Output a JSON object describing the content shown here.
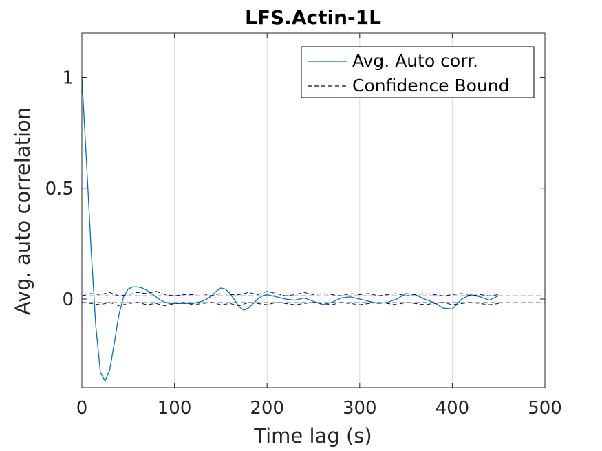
{
  "chart_data": {
    "type": "line",
    "title": "LFS.Actin-1L",
    "xlabel": "Time lag (s)",
    "ylabel": "Avg. auto correlation",
    "xlim": [
      0,
      500
    ],
    "ylim": [
      -0.4,
      1.2
    ],
    "xticks": [
      0,
      100,
      200,
      300,
      400,
      500
    ],
    "xtick_labels": [
      "0",
      "100",
      "200",
      "300",
      "400",
      "500"
    ],
    "yticks": [
      0,
      0.5,
      1
    ],
    "ytick_labels": [
      "0",
      "0.5",
      "1"
    ],
    "grid": "x-major",
    "legend_position": "top-right",
    "colors": {
      "auto_corr": "#0072BD",
      "bound": "#00008B",
      "bound_ref": "#808080",
      "grid": "#DCDCDC",
      "axes": "#262626"
    },
    "series": [
      {
        "name": "Avg. Auto corr.",
        "style": "solid",
        "x": [
          0,
          5,
          10,
          15,
          20,
          25,
          30,
          35,
          40,
          45,
          50,
          55,
          60,
          65,
          70,
          75,
          80,
          85,
          90,
          95,
          100,
          105,
          110,
          115,
          120,
          125,
          130,
          135,
          140,
          145,
          150,
          155,
          160,
          165,
          170,
          175,
          180,
          185,
          190,
          195,
          200,
          210,
          220,
          230,
          240,
          250,
          260,
          270,
          280,
          290,
          300,
          310,
          320,
          330,
          340,
          350,
          360,
          370,
          380,
          390,
          400,
          410,
          420,
          430,
          440,
          450
        ],
        "y": [
          1.0,
          0.62,
          0.22,
          -0.12,
          -0.33,
          -0.37,
          -0.32,
          -0.2,
          -0.07,
          0.01,
          0.045,
          0.055,
          0.055,
          0.05,
          0.04,
          0.025,
          0.01,
          -0.005,
          -0.015,
          -0.02,
          -0.02,
          -0.02,
          -0.02,
          -0.02,
          -0.02,
          -0.015,
          -0.01,
          0.0,
          0.015,
          0.035,
          0.05,
          0.045,
          0.025,
          -0.005,
          -0.035,
          -0.05,
          -0.04,
          -0.02,
          0.0,
          0.015,
          0.02,
          0.01,
          0.0,
          -0.005,
          0.005,
          -0.01,
          -0.025,
          -0.015,
          0.005,
          0.01,
          0.0,
          -0.01,
          -0.02,
          -0.015,
          0.0,
          0.025,
          0.02,
          0.0,
          -0.015,
          -0.04,
          -0.045,
          0.0,
          0.02,
          0.01,
          -0.005,
          0.015
        ]
      },
      {
        "name": "Confidence Bound",
        "style": "dashed",
        "x": [
          0,
          10,
          20,
          30,
          40,
          50,
          60,
          70,
          80,
          90,
          100,
          110,
          120,
          130,
          140,
          150,
          160,
          170,
          180,
          190,
          200,
          210,
          220,
          230,
          240,
          250,
          260,
          270,
          280,
          290,
          300,
          310,
          320,
          330,
          340,
          350,
          360,
          370,
          380,
          390,
          400,
          410,
          420,
          430,
          440,
          450
        ],
        "y": [
          0.015,
          0.025,
          0.02,
          0.03,
          0.015,
          0.02,
          0.03,
          0.025,
          0.035,
          0.02,
          0.015,
          0.02,
          0.02,
          0.025,
          0.015,
          0.025,
          0.02,
          0.02,
          0.03,
          0.02,
          0.035,
          0.025,
          0.015,
          0.02,
          0.03,
          0.02,
          0.025,
          0.02,
          0.015,
          0.025,
          0.02,
          0.025,
          0.015,
          0.02,
          0.025,
          0.015,
          0.02,
          0.025,
          0.02,
          0.015,
          0.02,
          0.025,
          0.015,
          0.02,
          0.015,
          0.02
        ]
      },
      {
        "style": "dashed",
        "x": [
          0,
          10,
          20,
          30,
          40,
          50,
          60,
          70,
          80,
          90,
          100,
          110,
          120,
          130,
          140,
          150,
          160,
          170,
          180,
          190,
          200,
          210,
          220,
          230,
          240,
          250,
          260,
          270,
          280,
          290,
          300,
          310,
          320,
          330,
          340,
          350,
          360,
          370,
          380,
          390,
          400,
          410,
          420,
          430,
          440,
          450
        ],
        "y": [
          -0.015,
          -0.02,
          -0.025,
          -0.015,
          -0.03,
          -0.02,
          -0.015,
          -0.025,
          -0.02,
          -0.03,
          -0.02,
          -0.015,
          -0.025,
          -0.02,
          -0.015,
          -0.025,
          -0.02,
          -0.03,
          -0.015,
          -0.02,
          -0.025,
          -0.015,
          -0.02,
          -0.025,
          -0.02,
          -0.015,
          -0.02,
          -0.025,
          -0.015,
          -0.02,
          -0.025,
          -0.02,
          -0.015,
          -0.02,
          -0.025,
          -0.015,
          -0.02,
          -0.025,
          -0.02,
          -0.015,
          -0.025,
          -0.02,
          -0.015,
          -0.02,
          -0.025,
          -0.02
        ]
      }
    ],
    "reference_lines": [
      {
        "style": "dashed",
        "y": 0.015,
        "x": [
          0,
          500
        ]
      },
      {
        "style": "dashed",
        "y": -0.015,
        "x": [
          0,
          500
        ]
      }
    ]
  }
}
